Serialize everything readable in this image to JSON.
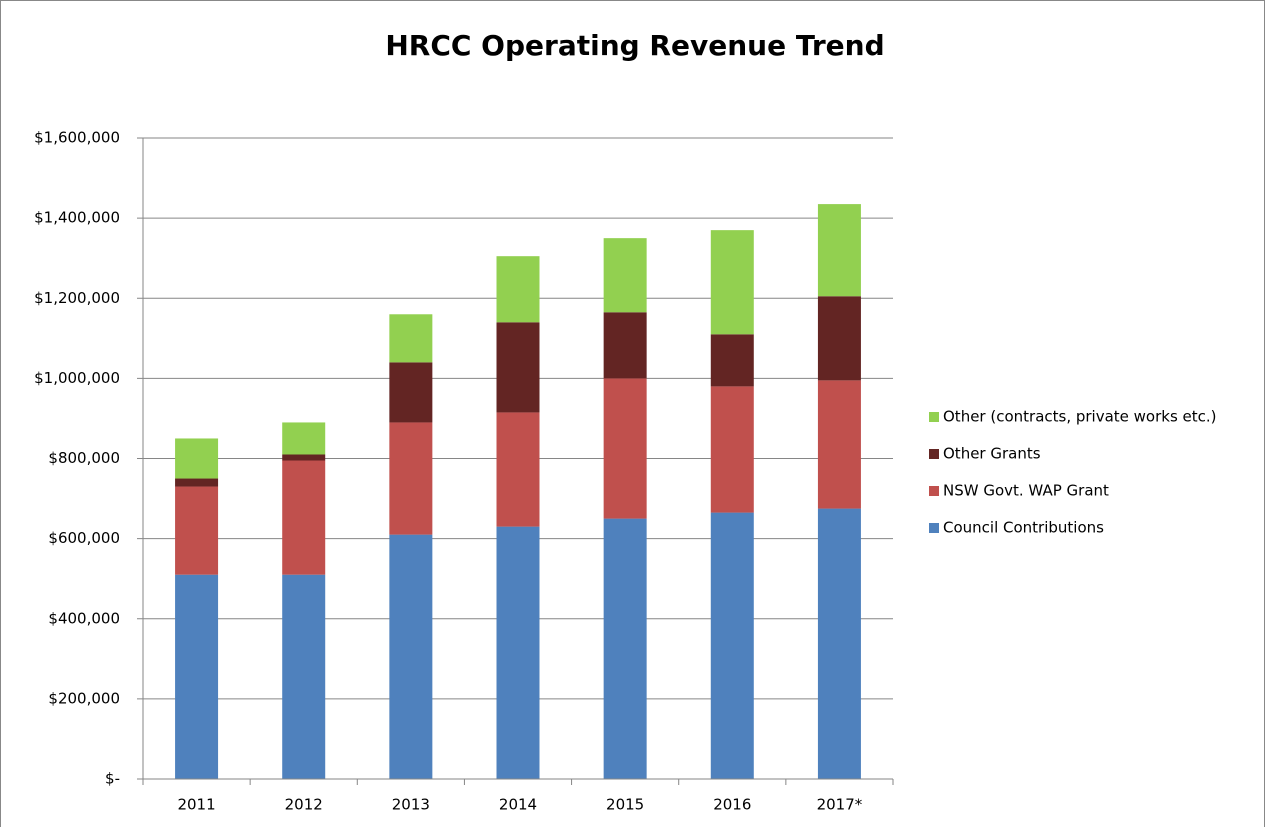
{
  "chart_data": {
    "type": "stacked-bar",
    "title": "HRCC Operating Revenue Trend",
    "categories": [
      "2011",
      "2012",
      "2013",
      "2014",
      "2015",
      "2016",
      "2017*"
    ],
    "series": [
      {
        "name": "Council Contributions",
        "color": "#4f81bd",
        "values": [
          510000,
          510000,
          610000,
          630000,
          650000,
          665000,
          675000
        ]
      },
      {
        "name": "NSW Govt. WAP  Grant",
        "color": "#c0504d",
        "values": [
          220000,
          285000,
          280000,
          285000,
          350000,
          315000,
          320000
        ]
      },
      {
        "name": "Other Grants",
        "color": "#632523",
        "values": [
          20000,
          15000,
          150000,
          225000,
          165000,
          130000,
          210000
        ]
      },
      {
        "name": "Other (contracts, private works etc.)",
        "color": "#92d050",
        "values": [
          100000,
          80000,
          120000,
          165000,
          185000,
          260000,
          230000
        ]
      }
    ],
    "ylim": [
      0,
      1600000
    ],
    "yticks": [
      {
        "value": 0,
        "label": "$-"
      },
      {
        "value": 200000,
        "label": "$200,000"
      },
      {
        "value": 400000,
        "label": "$400,000"
      },
      {
        "value": 600000,
        "label": "$600,000"
      },
      {
        "value": 800000,
        "label": "$800,000"
      },
      {
        "value": 1000000,
        "label": "$1,000,000"
      },
      {
        "value": 1200000,
        "label": "$1,200,000"
      },
      {
        "value": 1400000,
        "label": "$1,400,000"
      },
      {
        "value": 1600000,
        "label": "$1,600,000"
      }
    ],
    "grid": true,
    "legend": "right"
  }
}
